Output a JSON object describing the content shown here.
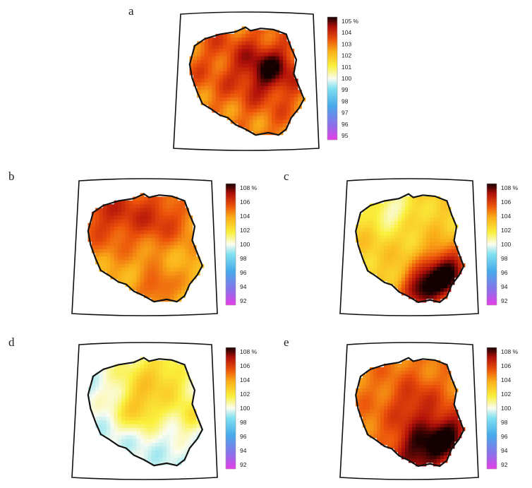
{
  "panels": [
    {
      "id": "a",
      "letter": "a",
      "unit": "%",
      "ticks": [
        "105",
        "104",
        "103",
        "102",
        "101",
        "100",
        "99",
        "98",
        "97",
        "96",
        "95"
      ],
      "range": [
        95,
        105
      ],
      "base": 102.8,
      "hotspots": [
        {
          "u": 0.68,
          "v": 0.42,
          "s": 0.16,
          "amp": 2.0
        },
        {
          "u": 0.35,
          "v": 0.3,
          "s": 0.2,
          "amp": 0.4
        }
      ]
    },
    {
      "id": "b",
      "letter": "b",
      "unit": "%",
      "ticks": [
        "108",
        "106",
        "104",
        "102",
        "100",
        "98",
        "96",
        "94",
        "92"
      ],
      "range": [
        92,
        108
      ],
      "base": 103.4,
      "hotspots": [
        {
          "u": 0.2,
          "v": 0.18,
          "s": 0.25,
          "amp": 2.4
        },
        {
          "u": 0.65,
          "v": 0.25,
          "s": 0.18,
          "amp": 1.8
        },
        {
          "u": 0.6,
          "v": 0.85,
          "s": 0.1,
          "amp": 1.8
        }
      ]
    },
    {
      "id": "c",
      "letter": "c",
      "unit": "%",
      "ticks": [
        "108",
        "106",
        "104",
        "102",
        "100",
        "98",
        "96",
        "94",
        "92"
      ],
      "range": [
        92,
        108
      ],
      "base": 102.6,
      "hotspots": [
        {
          "u": 0.82,
          "v": 0.72,
          "s": 0.15,
          "amp": 5.5
        },
        {
          "u": 0.6,
          "v": 0.88,
          "s": 0.12,
          "amp": 4.5
        },
        {
          "u": 0.35,
          "v": 0.18,
          "s": 0.12,
          "amp": -2.2
        }
      ]
    },
    {
      "id": "d",
      "letter": "d",
      "unit": "%",
      "ticks": [
        "108",
        "106",
        "104",
        "102",
        "100",
        "98",
        "96",
        "94",
        "92"
      ],
      "range": [
        92,
        108
      ],
      "base": 99.6,
      "hotspots": [
        {
          "u": 0.6,
          "v": 0.22,
          "s": 0.22,
          "amp": 3.0
        },
        {
          "u": 0.45,
          "v": 0.5,
          "s": 0.12,
          "amp": 2.2
        },
        {
          "u": 0.88,
          "v": 0.55,
          "s": 0.1,
          "amp": 1.8
        }
      ]
    },
    {
      "id": "e",
      "letter": "e",
      "unit": "%",
      "ticks": [
        "108",
        "106",
        "104",
        "102",
        "100",
        "98",
        "96",
        "94",
        "92"
      ],
      "range": [
        92,
        108
      ],
      "base": 104.4,
      "hotspots": [
        {
          "u": 0.6,
          "v": 0.85,
          "s": 0.16,
          "amp": 3.4
        },
        {
          "u": 0.85,
          "v": 0.7,
          "s": 0.13,
          "amp": 3.0
        },
        {
          "u": 0.55,
          "v": 0.45,
          "s": 0.15,
          "amp": 1.6
        }
      ]
    }
  ]
}
